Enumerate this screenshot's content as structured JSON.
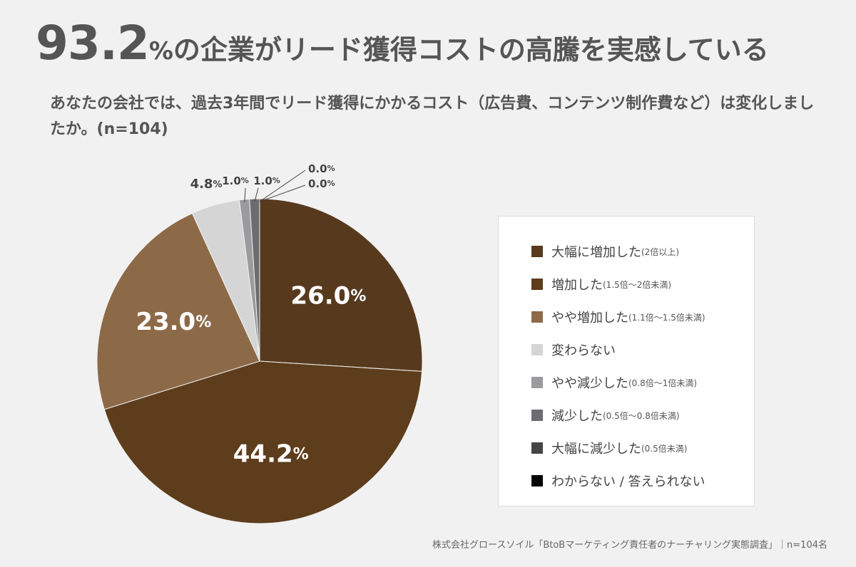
{
  "header": {
    "big_number": "93.2",
    "big_unit": "%",
    "rest": "の企業がリード獲得コストの高騰を実感している"
  },
  "question": "あなたの会社では、過去3年間でリード獲得にかかるコスト（広告費、コンテンツ制作費など）は変化しましたか。(n=104)",
  "source": "株式会社グロースソイル「BtoBマーケティング責任者のナーチャリング実態調査」｜n=104名",
  "chart_data": {
    "type": "pie",
    "n": 104,
    "start": "top, clockwise",
    "slices": [
      {
        "label": "大幅に増加した",
        "note": "(2倍以上)",
        "value": 26.0,
        "color": "#573a1e",
        "label_style": "inside"
      },
      {
        "label": "増加した",
        "note": "(1.5倍～2倍未満)",
        "value": 44.2,
        "color": "#5d3d1c",
        "label_style": "inside"
      },
      {
        "label": "やや増加した",
        "note": "(1.1倍～1.5倍未満)",
        "value": 23.0,
        "color": "#8c6a48",
        "label_style": "inside"
      },
      {
        "label": "変わらない",
        "note": "",
        "value": 4.8,
        "color": "#d6d5d6",
        "label_style": "outside"
      },
      {
        "label": "やや減少した",
        "note": "(0.8倍～1倍未満)",
        "value": 1.0,
        "color": "#9b9b9e",
        "label_style": "callout"
      },
      {
        "label": "減少した",
        "note": "(0.5倍～0.8倍未満)",
        "value": 1.0,
        "color": "#6d6c71",
        "label_style": "callout"
      },
      {
        "label": "大幅に減少した",
        "note": "(0.5倍未満)",
        "value": 0.0,
        "color": "#444444",
        "label_style": "callout"
      },
      {
        "label": "わからない / 答えられない",
        "note": "",
        "value": 0.0,
        "color": "#050505",
        "label_style": "callout"
      }
    ]
  }
}
